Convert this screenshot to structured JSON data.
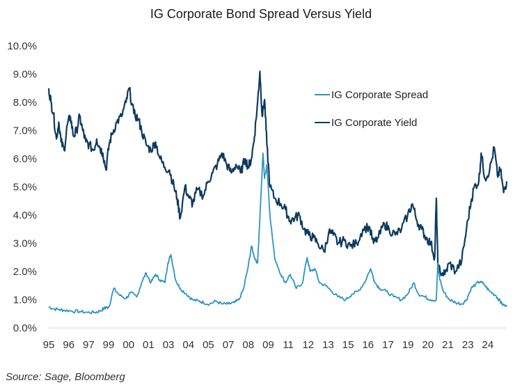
{
  "chart_data": {
    "type": "line",
    "title": "IG Corporate Bond Spread Versus Yield",
    "xlabel": "",
    "ylabel": "",
    "ylim": [
      0,
      10
    ],
    "xlim": [
      1995.0,
      2024.6
    ],
    "y_ticks": [
      "0.0%",
      "1.0%",
      "2.0%",
      "3.0%",
      "4.0%",
      "5.0%",
      "6.0%",
      "7.0%",
      "8.0%",
      "9.0%",
      "10.0%"
    ],
    "y_tick_values": [
      0,
      1,
      2,
      3,
      4,
      5,
      6,
      7,
      8,
      9,
      10
    ],
    "x_tick_labels": [
      "95",
      "96",
      "97",
      "99",
      "00",
      "01",
      "03",
      "04",
      "05",
      "07",
      "08",
      "09",
      "11",
      "12",
      "13",
      "15",
      "16",
      "17",
      "19",
      "20",
      "21",
      "23",
      "24"
    ],
    "x_tick_values": [
      1995.0,
      1996.29,
      1997.58,
      1998.87,
      2000.16,
      2001.45,
      2002.74,
      2004.03,
      2005.32,
      2006.61,
      2007.9,
      2009.19,
      2010.48,
      2011.77,
      2013.06,
      2014.35,
      2015.64,
      2016.93,
      2018.22,
      2019.51,
      2020.8,
      2022.09,
      2023.38
    ],
    "grid": false,
    "legend": {
      "position": "top-right-inside"
    },
    "series": [
      {
        "name": "IG Corporate Spread",
        "color": "#2e93c3",
        "x": [
          1995.0,
          1995.3,
          1995.7,
          1996.0,
          1996.5,
          1997.0,
          1997.5,
          1998.0,
          1998.3,
          1998.6,
          1998.7,
          1998.9,
          1999.2,
          1999.6,
          2000.0,
          2000.3,
          2000.7,
          2001.0,
          2001.3,
          2001.6,
          2001.9,
          2002.2,
          2002.5,
          2002.7,
          2002.9,
          2003.2,
          2003.5,
          2003.9,
          2004.3,
          2004.7,
          2005.0,
          2005.4,
          2005.8,
          2006.2,
          2006.6,
          2007.0,
          2007.3,
          2007.6,
          2007.9,
          2008.1,
          2008.3,
          2008.5,
          2008.7,
          2008.85,
          2008.95,
          2009.1,
          2009.3,
          2009.6,
          2010.0,
          2010.3,
          2010.6,
          2011.0,
          2011.4,
          2011.7,
          2011.9,
          2012.2,
          2012.5,
          2012.9,
          2013.3,
          2013.7,
          2014.2,
          2014.6,
          2015.0,
          2015.4,
          2015.8,
          2016.1,
          2016.4,
          2016.8,
          2017.3,
          2017.8,
          2018.2,
          2018.6,
          2018.9,
          2019.3,
          2019.7,
          2020.05,
          2020.15,
          2020.25,
          2020.5,
          2020.9,
          2021.3,
          2021.7,
          2022.0,
          2022.3,
          2022.6,
          2022.9,
          2023.2,
          2023.5,
          2023.9,
          2024.1,
          2024.3,
          2024.6
        ],
        "values": [
          0.75,
          0.68,
          0.65,
          0.63,
          0.6,
          0.58,
          0.55,
          0.55,
          0.6,
          0.7,
          0.72,
          0.75,
          1.4,
          1.15,
          1.05,
          1.25,
          1.1,
          1.6,
          1.95,
          1.6,
          1.9,
          1.7,
          1.6,
          2.3,
          2.6,
          1.7,
          1.4,
          1.2,
          1.0,
          0.95,
          0.9,
          0.85,
          0.95,
          0.85,
          0.85,
          0.9,
          1.0,
          1.4,
          2.2,
          2.9,
          2.5,
          2.3,
          4.5,
          6.2,
          5.3,
          5.8,
          4.0,
          2.5,
          1.9,
          1.6,
          1.9,
          1.4,
          1.6,
          2.5,
          2.0,
          2.1,
          1.6,
          1.5,
          1.3,
          1.1,
          1.0,
          1.2,
          1.3,
          1.6,
          2.1,
          1.6,
          1.4,
          1.3,
          1.1,
          1.0,
          1.2,
          1.6,
          1.2,
          1.1,
          1.0,
          1.0,
          2.3,
          1.8,
          1.3,
          1.0,
          0.9,
          0.85,
          1.0,
          1.4,
          1.55,
          1.65,
          1.5,
          1.3,
          1.15,
          1.0,
          0.85,
          0.75
        ]
      },
      {
        "name": "IG Corporate Yield",
        "color": "#0d3a5e",
        "x": [
          1995.0,
          1995.15,
          1995.3,
          1995.5,
          1995.65,
          1995.8,
          1996.0,
          1996.2,
          1996.4,
          1996.6,
          1996.8,
          1997.0,
          1997.2,
          1997.4,
          1997.6,
          1997.9,
          1998.1,
          1998.3,
          1998.5,
          1998.7,
          1998.9,
          1999.1,
          1999.4,
          1999.7,
          2000.0,
          2000.2,
          2000.5,
          2000.8,
          2001.0,
          2001.3,
          2001.6,
          2001.9,
          2002.2,
          2002.5,
          2002.8,
          2003.1,
          2003.3,
          2003.5,
          2003.8,
          2004.1,
          2004.3,
          2004.6,
          2005.0,
          2005.3,
          2005.6,
          2005.9,
          2006.2,
          2006.5,
          2006.8,
          2007.1,
          2007.4,
          2007.7,
          2007.9,
          2008.1,
          2008.3,
          2008.5,
          2008.65,
          2008.8,
          2008.95,
          2009.1,
          2009.3,
          2009.6,
          2010.0,
          2010.3,
          2010.6,
          2010.9,
          2011.2,
          2011.5,
          2011.8,
          2012.1,
          2012.4,
          2012.8,
          2013.1,
          2013.4,
          2013.7,
          2014.1,
          2014.5,
          2014.9,
          2015.3,
          2015.7,
          2016.0,
          2016.3,
          2016.7,
          2017.0,
          2017.4,
          2017.8,
          2018.2,
          2018.5,
          2018.8,
          2019.1,
          2019.4,
          2019.7,
          2019.95,
          2020.05,
          2020.15,
          2020.3,
          2020.6,
          2020.9,
          2021.3,
          2021.7,
          2022.0,
          2022.3,
          2022.5,
          2022.8,
          2022.95,
          2023.2,
          2023.5,
          2023.8,
          2024.0,
          2024.2,
          2024.4,
          2024.6
        ],
        "values": [
          8.5,
          8.0,
          7.6,
          6.7,
          7.3,
          6.6,
          6.3,
          7.2,
          7.5,
          6.8,
          7.0,
          7.5,
          7.0,
          6.6,
          6.5,
          6.3,
          6.7,
          6.4,
          6.2,
          5.6,
          6.5,
          6.9,
          7.3,
          7.5,
          8.0,
          8.5,
          7.6,
          7.4,
          7.0,
          6.5,
          6.3,
          6.6,
          6.0,
          5.7,
          5.6,
          5.0,
          4.6,
          3.9,
          5.0,
          4.6,
          4.4,
          4.9,
          4.7,
          5.2,
          5.5,
          5.8,
          6.2,
          5.8,
          5.5,
          5.8,
          5.5,
          6.0,
          5.7,
          6.0,
          6.8,
          8.0,
          9.1,
          7.5,
          8.1,
          6.5,
          5.0,
          4.6,
          4.4,
          4.2,
          3.8,
          3.9,
          4.0,
          3.5,
          3.3,
          3.2,
          3.0,
          2.7,
          3.4,
          3.3,
          3.0,
          3.1,
          2.9,
          3.0,
          3.5,
          3.6,
          3.0,
          3.2,
          3.7,
          3.5,
          3.3,
          3.5,
          4.0,
          4.4,
          3.8,
          3.5,
          3.2,
          3.0,
          2.5,
          4.6,
          2.2,
          2.0,
          1.9,
          2.3,
          2.0,
          2.4,
          3.5,
          4.5,
          5.0,
          5.2,
          6.2,
          5.3,
          5.6,
          6.4,
          5.4,
          5.6,
          4.8,
          5.2
        ]
      }
    ]
  },
  "source_note": "Source: Sage, Bloomberg"
}
